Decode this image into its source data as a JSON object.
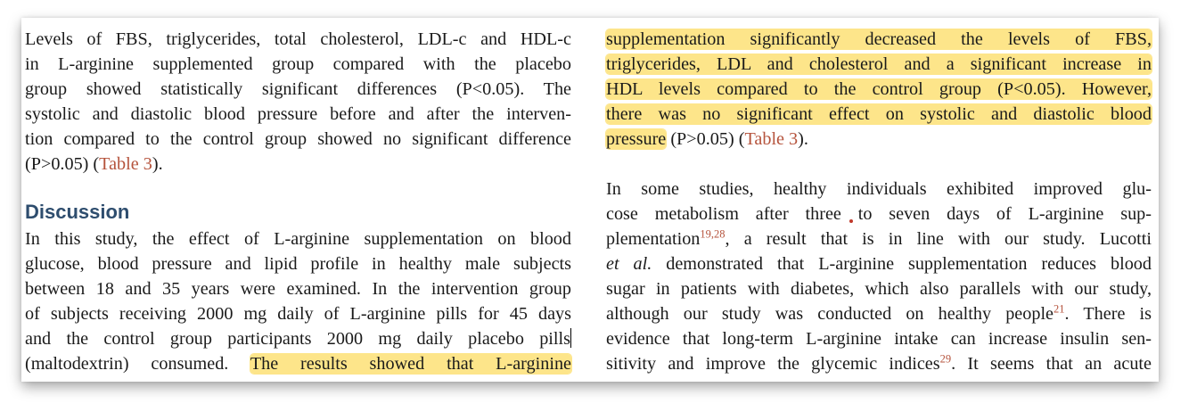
{
  "left_column": {
    "results_lines": [
      "Levels of FBS, triglycerides, total cholesterol, LDL-c and HDL-c",
      "in L-arginine supplemented group compared with the placebo",
      "group showed statistically significant differences (P<0.05). The",
      "systolic and diastolic blood pressure before and after the interven-",
      "tion compared to the control group showed no significant difference"
    ],
    "results_last_prefix": "(P>0.05) (",
    "results_last_ref": "Table 3",
    "results_last_suffix": ").",
    "heading": "Discussion",
    "discussion_lines": [
      "In this study, the effect of L-arginine supplementation on blood",
      "glucose, blood pressure and lipid profile in healthy male subjects",
      "between 18 and 35 years were examined. In the intervention group",
      "of subjects receiving 2000 mg daily of L-arginine pills for 45 days"
    ],
    "line9_text": "and the control group participants 2000 mg daily placebo pills",
    "line10_plain": "(maltodextrin) consumed.",
    "line10_highlight": "The results showed that L-arginine"
  },
  "right_column": {
    "highlight_lines": [
      "supplementation significantly decreased the levels of FBS,",
      "triglycerides, LDL and cholesterol and a significant increase in",
      "HDL levels compared to the control group (P<0.05). However,",
      "there was no significant effect on systolic and diastolic blood"
    ],
    "line5_highlight": "pressure",
    "line5_plain": " (P>0.05) (",
    "line5_ref": "Table 3",
    "line5_suffix": ").",
    "p2_line1": "In some studies, healthy individuals exhibited improved glu-",
    "p2_line2": "cose metabolism after three to seven days of L-arginine sup-",
    "p2_line3_pre": "plementation",
    "p2_line3_cite": "19,28",
    "p2_line3_post": ", a result that is in line with our study. Lucotti",
    "p2_line4_italic": "et al.",
    "p2_line4_post": " demonstrated that L-arginine supplementation reduces blood",
    "p2_line5": "sugar in patients with diabetes, which also parallels with our study,",
    "p2_line6_pre": "although our study was conducted on healthy people",
    "p2_line6_cite": "21",
    "p2_line6_post": ". There is",
    "p2_line7": "evidence that long-term L-arginine intake can increase insulin sen-",
    "p2_line8_pre": "sitivity and improve the glycemic indices",
    "p2_line8_cite": "29",
    "p2_line8_post": ". It seems that an acute"
  },
  "colors": {
    "highlight": "#fde58a",
    "reference_link": "#b5533c",
    "heading": "#2e4d6e"
  }
}
